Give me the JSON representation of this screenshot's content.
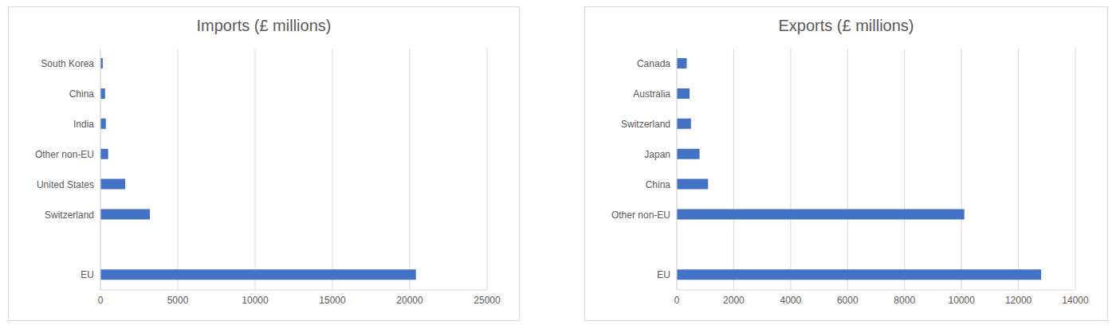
{
  "chart_data": [
    {
      "type": "bar",
      "title": "Imports (£ millions)",
      "orientation": "horizontal",
      "grid": true,
      "color": "#4472c4",
      "categories": [
        "South Korea",
        "China",
        "India",
        "Other non-EU",
        "United States",
        "Switzerland",
        null,
        "EU"
      ],
      "values": [
        150,
        300,
        350,
        500,
        1600,
        3200,
        null,
        20400
      ],
      "xlim": [
        0,
        25000
      ],
      "xticks": [
        0,
        5000,
        10000,
        15000,
        20000,
        25000
      ]
    },
    {
      "type": "bar",
      "title": "Exports (£ millions)",
      "orientation": "horizontal",
      "grid": true,
      "color": "#4472c4",
      "categories": [
        "Canada",
        "Australia",
        "Switzerland",
        "Japan",
        "China",
        "Other non-EU",
        null,
        "EU"
      ],
      "values": [
        350,
        450,
        500,
        800,
        1100,
        10100,
        null,
        12800
      ],
      "xlim": [
        0,
        14000
      ],
      "xticks": [
        0,
        2000,
        4000,
        6000,
        8000,
        10000,
        12000,
        14000
      ]
    }
  ]
}
